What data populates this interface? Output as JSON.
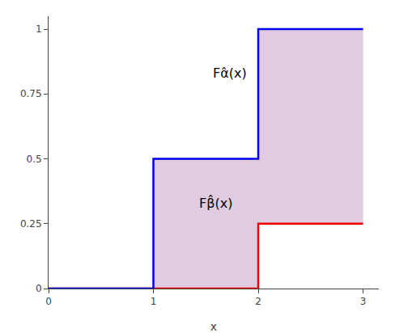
{
  "chart_data": {
    "type": "line",
    "xlabel": "x",
    "xlim": [
      0,
      3.15
    ],
    "ylim": [
      0,
      1.05
    ],
    "xticks": [
      0,
      1,
      2,
      3
    ],
    "yticks": [
      0,
      0.25,
      0.5,
      0.75,
      1
    ],
    "grid": false,
    "color": "#c8a0c8",
    "series": [
      {
        "name": "Fα̂(x)",
        "color": "#0000ee",
        "x": [
          0,
          1,
          1,
          2,
          2,
          3
        ],
        "values": [
          0,
          0,
          0.5,
          0.5,
          1.0,
          1.0
        ]
      },
      {
        "name": "Fβ̂(x)",
        "color": "#ee0000",
        "x": [
          0,
          2,
          2,
          3
        ],
        "values": [
          0,
          0,
          0.25,
          0.25
        ]
      }
    ]
  }
}
